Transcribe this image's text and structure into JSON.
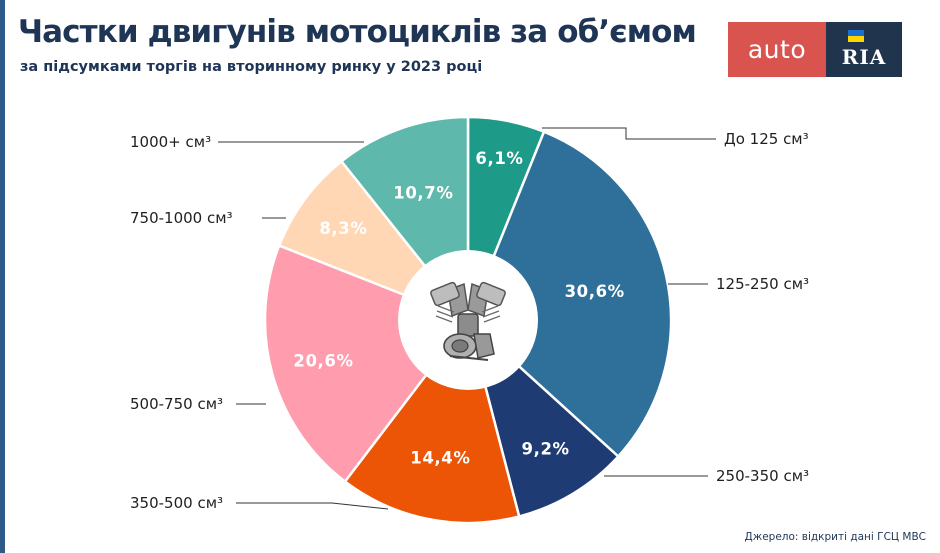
{
  "header": {
    "title": "Частки двигунів мотоциклів за об’ємом",
    "subtitle": "за підсумками торгів на вторинному ринку у 2023 році"
  },
  "logo": {
    "auto": "auto",
    "ria": "RIA"
  },
  "source": "Джерело: відкриті дані ГСЦ МВС",
  "colors": {
    "title": "#1e3556",
    "logo_red": "#d9534f",
    "logo_navy": "#21344e"
  },
  "chart_data": {
    "type": "pie",
    "title": "Частки двигунів мотоциклів за об’ємом",
    "subtitle": "за підсумками торгів на вторинному ринку у 2023 році",
    "unit": "%",
    "center_icon": "engine-icon",
    "slices": [
      {
        "label": "До 125 см³",
        "value": 6.1,
        "display": "6,1%",
        "color": "#1e9a88"
      },
      {
        "label": "125-250 см³",
        "value": 30.6,
        "display": "30,6%",
        "color": "#2e7099"
      },
      {
        "label": "250-350 см³",
        "value": 9.2,
        "display": "9,2%",
        "color": "#1f3b73"
      },
      {
        "label": "350-500 см³",
        "value": 14.4,
        "display": "14,4%",
        "color": "#ec5406"
      },
      {
        "label": "500-750 см³",
        "value": 20.6,
        "display": "20,6%",
        "color": "#ff9cad"
      },
      {
        "label": "750-1000 см³",
        "value": 8.3,
        "display": "8,3%",
        "color": "#ffd7b5"
      },
      {
        "label": "1000+ см³",
        "value": 10.7,
        "display": "10,7%",
        "color": "#5fb8ac"
      }
    ]
  }
}
